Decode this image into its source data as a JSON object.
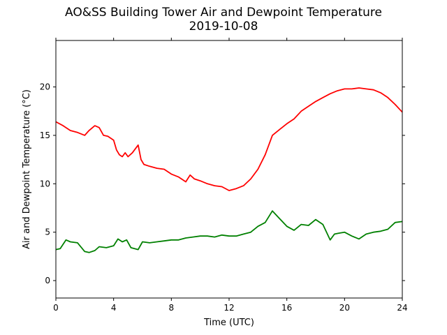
{
  "chart_data": {
    "type": "line",
    "title": "AO&SS Building Tower Air and Dewpoint Temperature",
    "subtitle": "2019-10-08",
    "xlabel": "Time (UTC)",
    "ylabel": "Air and Dewpoint Temperature (°C)",
    "xlim": [
      0,
      24
    ],
    "ylim": [
      -1.8,
      24.8
    ],
    "xticks": [
      0,
      4,
      8,
      12,
      16,
      20,
      24
    ],
    "yticks": [
      0,
      5,
      10,
      15,
      20
    ],
    "grid": false,
    "series": [
      {
        "color": "#ff0000",
        "x": [
          0,
          0.5,
          1.0,
          1.5,
          2.0,
          2.3,
          2.7,
          3.0,
          3.3,
          3.6,
          4.0,
          4.2,
          4.4,
          4.6,
          4.8,
          5.0,
          5.3,
          5.7,
          5.9,
          6.1,
          6.5,
          7.0,
          7.5,
          8.0,
          8.5,
          9.0,
          9.3,
          9.6,
          10.0,
          10.5,
          11.0,
          11.5,
          12.0,
          12.5,
          13.0,
          13.5,
          14.0,
          14.5,
          15.0,
          15.5,
          16.0,
          16.5,
          17.0,
          17.5,
          18.0,
          18.5,
          19.0,
          19.5,
          20.0,
          20.5,
          21.0,
          21.5,
          22.0,
          22.5,
          23.0,
          23.5,
          24.0
        ],
        "y": [
          16.4,
          16.0,
          15.5,
          15.3,
          15.0,
          15.5,
          16.0,
          15.8,
          15.0,
          14.9,
          14.5,
          13.5,
          13.0,
          12.8,
          13.2,
          12.8,
          13.2,
          14.0,
          12.5,
          12.0,
          11.8,
          11.6,
          11.5,
          11.0,
          10.7,
          10.2,
          10.9,
          10.5,
          10.3,
          10.0,
          9.8,
          9.7,
          9.3,
          9.5,
          9.8,
          10.5,
          11.5,
          13.0,
          15.0,
          15.6,
          16.2,
          16.7,
          17.5,
          18.0,
          18.5,
          18.9,
          19.3,
          19.6,
          19.8,
          19.8,
          19.9,
          19.8,
          19.7,
          19.4,
          18.9,
          18.2,
          17.4
        ]
      },
      {
        "color": "#008000",
        "x": [
          0,
          0.3,
          0.7,
          1.0,
          1.5,
          2.0,
          2.3,
          2.7,
          3.0,
          3.5,
          4.0,
          4.3,
          4.6,
          4.9,
          5.2,
          5.7,
          6.0,
          6.5,
          7.0,
          7.5,
          8.0,
          8.5,
          9.0,
          9.5,
          10.0,
          10.5,
          11.0,
          11.5,
          12.0,
          12.5,
          13.0,
          13.5,
          14.0,
          14.5,
          15.0,
          15.5,
          16.0,
          16.5,
          17.0,
          17.5,
          18.0,
          18.5,
          19.0,
          19.3,
          19.6,
          20.0,
          20.5,
          21.0,
          21.5,
          22.0,
          22.5,
          23.0,
          23.5,
          24.0
        ],
        "y": [
          3.2,
          3.3,
          4.2,
          4.0,
          3.9,
          3.0,
          2.9,
          3.1,
          3.5,
          3.4,
          3.6,
          4.3,
          4.0,
          4.2,
          3.4,
          3.2,
          4.0,
          3.9,
          4.0,
          4.1,
          4.2,
          4.2,
          4.4,
          4.5,
          4.6,
          4.6,
          4.5,
          4.7,
          4.6,
          4.6,
          4.8,
          5.0,
          5.6,
          6.0,
          7.2,
          6.4,
          5.6,
          5.2,
          5.8,
          5.7,
          6.3,
          5.8,
          4.2,
          4.8,
          4.9,
          5.0,
          4.6,
          4.3,
          4.8,
          5.0,
          5.1,
          5.3,
          6.0,
          6.1
        ]
      }
    ]
  }
}
